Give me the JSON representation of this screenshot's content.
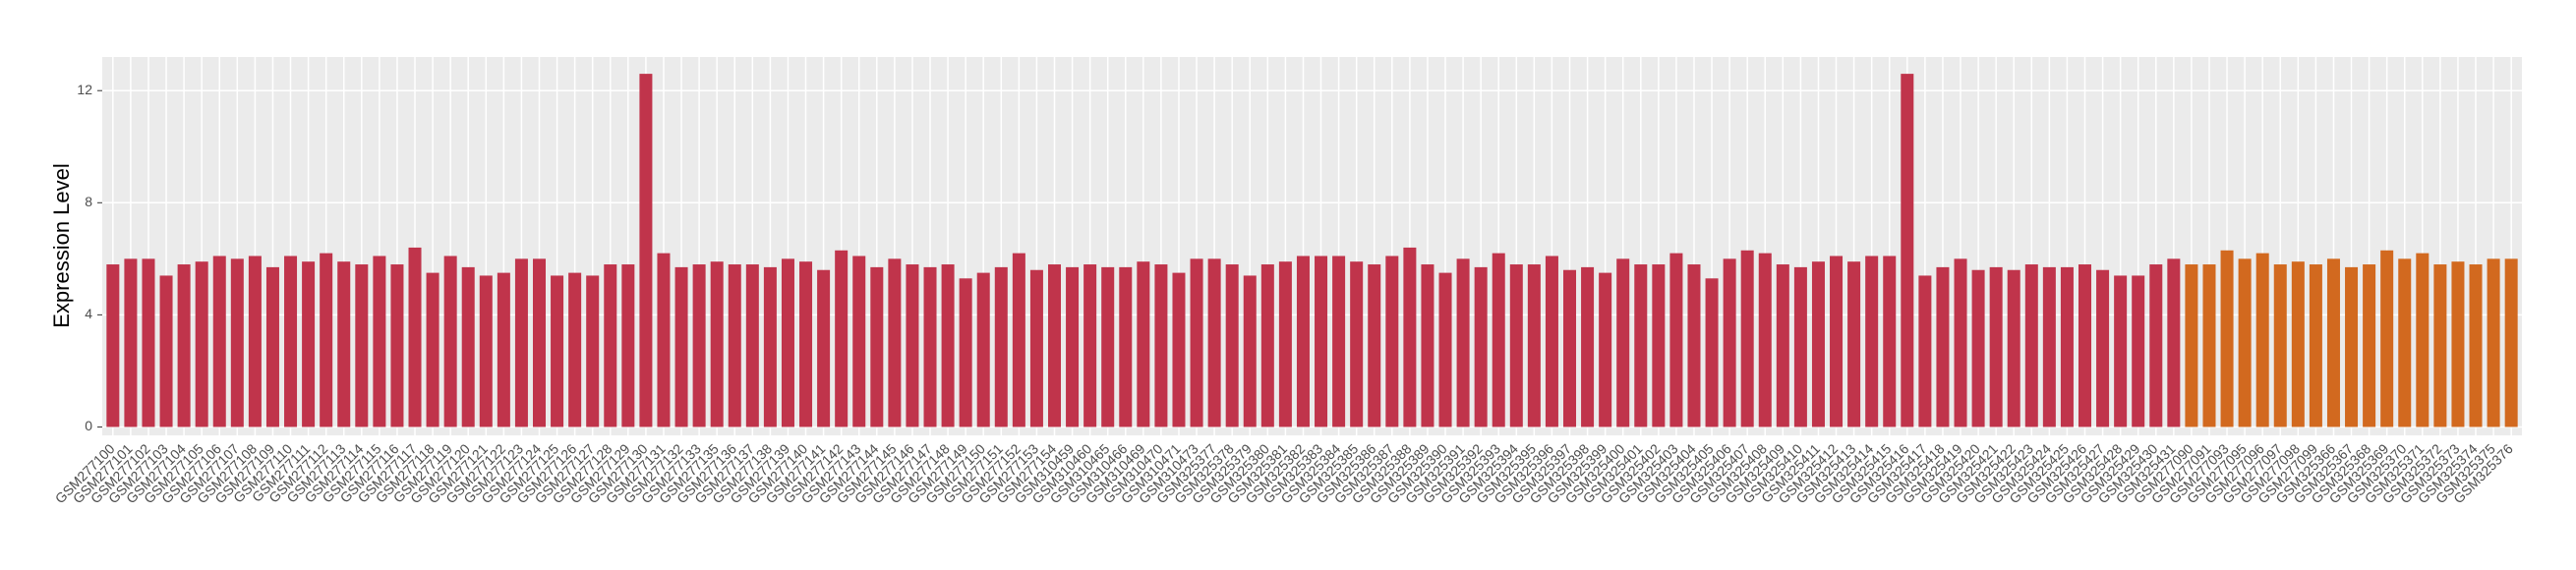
{
  "chart_data": {
    "type": "bar",
    "y_label": "Expression Level",
    "ylim": [
      -0.3,
      13.2
    ],
    "yticks": [
      0,
      4,
      8,
      12
    ],
    "grid": true,
    "series": [
      {
        "color": "#c0344b",
        "categories": [
          "GSM277100",
          "GSM277101",
          "GSM277102",
          "GSM277103",
          "GSM277104",
          "GSM277105",
          "GSM277106",
          "GSM277107",
          "GSM277108",
          "GSM277109",
          "GSM277110",
          "GSM277111",
          "GSM277112",
          "GSM277113",
          "GSM277114",
          "GSM277115",
          "GSM277116",
          "GSM277117",
          "GSM277118",
          "GSM277119",
          "GSM277120",
          "GSM277121",
          "GSM277122",
          "GSM277123",
          "GSM277124",
          "GSM277125",
          "GSM277126",
          "GSM277127",
          "GSM277128",
          "GSM277129",
          "GSM277130",
          "GSM277131",
          "GSM277132",
          "GSM277133",
          "GSM277135",
          "GSM277136",
          "GSM277137",
          "GSM277138",
          "GSM277139",
          "GSM277140",
          "GSM277141",
          "GSM277142",
          "GSM277143",
          "GSM277144",
          "GSM277145",
          "GSM277146",
          "GSM277147",
          "GSM277148",
          "GSM277149",
          "GSM277150",
          "GSM277151",
          "GSM277152",
          "GSM277153",
          "GSM277154",
          "GSM310459",
          "GSM310460",
          "GSM310465",
          "GSM310466",
          "GSM310469",
          "GSM310470",
          "GSM310471",
          "GSM310473",
          "GSM325377",
          "GSM325378",
          "GSM325379",
          "GSM325380",
          "GSM325381",
          "GSM325382",
          "GSM325383",
          "GSM325384",
          "GSM325385",
          "GSM325386",
          "GSM325387",
          "GSM325388",
          "GSM325389",
          "GSM325390",
          "GSM325391",
          "GSM325392",
          "GSM325393",
          "GSM325394",
          "GSM325395",
          "GSM325396",
          "GSM325397",
          "GSM325398",
          "GSM325399",
          "GSM325400",
          "GSM325401",
          "GSM325402",
          "GSM325403",
          "GSM325404",
          "GSM325405",
          "GSM325406",
          "GSM325407",
          "GSM325408",
          "GSM325409",
          "GSM325410",
          "GSM325411",
          "GSM325412",
          "GSM325413",
          "GSM325414",
          "GSM325415",
          "GSM325416",
          "GSM325417",
          "GSM325418",
          "GSM325419",
          "GSM325420",
          "GSM325421",
          "GSM325422",
          "GSM325423",
          "GSM325424",
          "GSM325425",
          "GSM325426",
          "GSM325427",
          "GSM325428",
          "GSM325429",
          "GSM325430",
          "GSM325431"
        ],
        "values": [
          5.8,
          6.0,
          6.0,
          5.4,
          5.8,
          5.9,
          6.1,
          6.0,
          6.1,
          5.7,
          6.1,
          5.9,
          6.2,
          5.9,
          5.8,
          6.1,
          5.8,
          6.4,
          5.5,
          6.1,
          5.7,
          5.4,
          5.5,
          6.0,
          6.0,
          5.4,
          5.5,
          5.4,
          5.8,
          5.8,
          12.6,
          6.2,
          5.7,
          5.8,
          5.9,
          5.8,
          5.8,
          5.7,
          6.0,
          5.9,
          5.6,
          6.3,
          6.1,
          5.7,
          6.0,
          5.8,
          5.7,
          5.8,
          5.3,
          5.5,
          5.7,
          6.2,
          5.6,
          5.8,
          5.7,
          5.8,
          5.7,
          5.7,
          5.9,
          5.8,
          5.5,
          6.0,
          6.0,
          5.8,
          5.4,
          5.8,
          5.9,
          6.1,
          6.1,
          6.1,
          5.9,
          5.8,
          6.1,
          6.4,
          5.8,
          5.5,
          6.0,
          5.7,
          6.2,
          5.8,
          5.8,
          6.1,
          5.6,
          5.7,
          5.5,
          6.0,
          5.8,
          5.8,
          6.2,
          5.8,
          5.3,
          6.0,
          6.3,
          6.2,
          5.8,
          5.7,
          5.9,
          6.1,
          5.9,
          6.1,
          6.1,
          12.6,
          5.4,
          5.7,
          6.0,
          5.6,
          5.7,
          5.6,
          5.8,
          5.7,
          5.7,
          5.8,
          5.6,
          5.4,
          5.4,
          5.8,
          6.0
        ]
      },
      {
        "color": "#d2691f",
        "categories": [
          "GSM277090",
          "GSM277091",
          "GSM277093",
          "GSM277095",
          "GSM277096",
          "GSM277097",
          "GSM277098",
          "GSM277099",
          "GSM325366",
          "GSM325367",
          "GSM325368",
          "GSM325369",
          "GSM325370",
          "GSM325371",
          "GSM325372",
          "GSM325373",
          "GSM325374",
          "GSM325375",
          "GSM325376"
        ],
        "values": [
          5.8,
          5.8,
          6.3,
          6.0,
          6.2,
          5.8,
          5.9,
          5.8,
          6.0,
          5.7,
          5.8,
          6.3,
          6.0,
          6.2,
          5.8,
          5.9,
          5.8,
          6.0,
          6.0
        ]
      }
    ]
  }
}
